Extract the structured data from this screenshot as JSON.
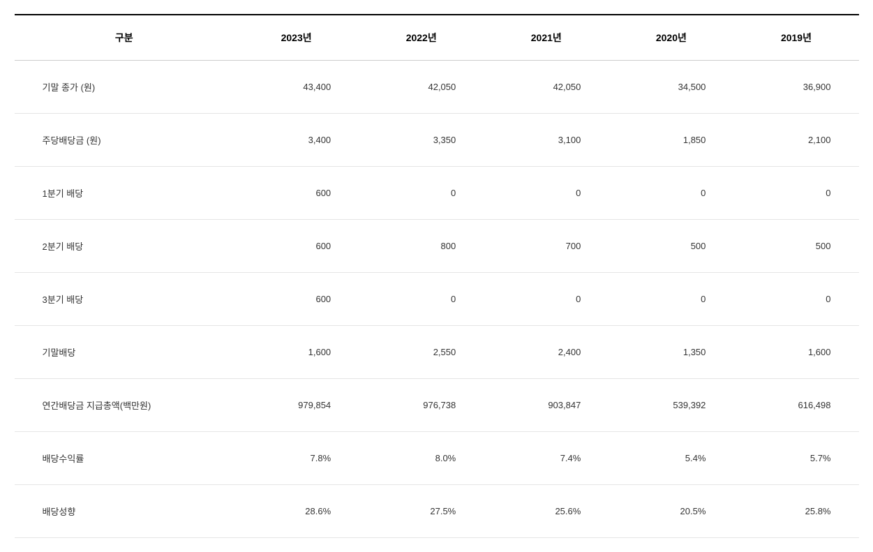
{
  "table": {
    "type": "table",
    "columns": [
      "구분",
      "2023년",
      "2022년",
      "2021년",
      "2020년",
      "2019년"
    ],
    "rows": [
      {
        "label": "기말 종가 (원)",
        "indent": false,
        "values": [
          "43,400",
          "42,050",
          "42,050",
          "34,500",
          "36,900"
        ]
      },
      {
        "label": "주당배당금 (원)",
        "indent": false,
        "values": [
          "3,400",
          "3,350",
          "3,100",
          "1,850",
          "2,100"
        ]
      },
      {
        "label": "1분기 배당",
        "indent": true,
        "values": [
          "600",
          "0",
          "0",
          "0",
          "0"
        ]
      },
      {
        "label": "2분기 배당",
        "indent": true,
        "values": [
          "600",
          "800",
          "700",
          "500",
          "500"
        ]
      },
      {
        "label": "3분기 배당",
        "indent": true,
        "values": [
          "600",
          "0",
          "0",
          "0",
          "0"
        ]
      },
      {
        "label": "기말배당",
        "indent": true,
        "values": [
          "1,600",
          "2,550",
          "2,400",
          "1,350",
          "1,600"
        ]
      },
      {
        "label": "연간배당금 지급총액(백만원)",
        "indent": false,
        "values": [
          "979,854",
          "976,738",
          "903,847",
          "539,392",
          "616,498"
        ]
      },
      {
        "label": "배당수익률",
        "indent": false,
        "values": [
          "7.8%",
          "8.0%",
          "7.4%",
          "5.4%",
          "5.7%"
        ]
      },
      {
        "label": "배당성향",
        "indent": false,
        "values": [
          "28.6%",
          "27.5%",
          "25.6%",
          "20.5%",
          "25.8%"
        ]
      }
    ],
    "colors": {
      "background": "#ffffff",
      "header_border_top": "#000000",
      "header_border_bottom": "#cccccc",
      "row_border": "#e5e5e5",
      "text": "#333333",
      "header_text": "#000000"
    },
    "font_sizes": {
      "header": 14,
      "body": 13
    }
  }
}
